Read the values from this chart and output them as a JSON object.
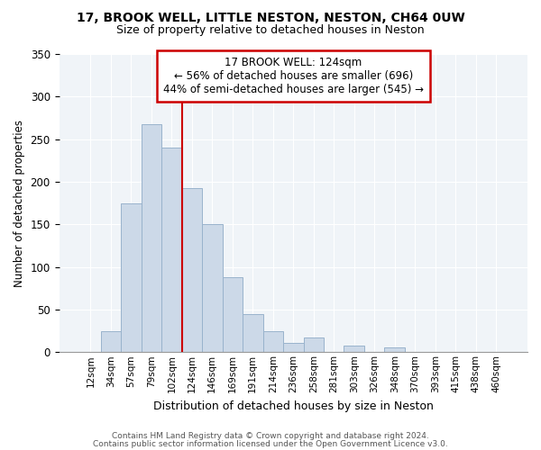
{
  "title": "17, BROOK WELL, LITTLE NESTON, NESTON, CH64 0UW",
  "subtitle": "Size of property relative to detached houses in Neston",
  "xlabel": "Distribution of detached houses by size in Neston",
  "ylabel": "Number of detached properties",
  "bar_color": "#ccd9e8",
  "bar_edge_color": "#99b3cc",
  "categories": [
    "12sqm",
    "34sqm",
    "57sqm",
    "79sqm",
    "102sqm",
    "124sqm",
    "146sqm",
    "169sqm",
    "191sqm",
    "214sqm",
    "236sqm",
    "258sqm",
    "281sqm",
    "303sqm",
    "326sqm",
    "348sqm",
    "370sqm",
    "393sqm",
    "415sqm",
    "438sqm",
    "460sqm"
  ],
  "values": [
    0,
    25,
    175,
    268,
    240,
    193,
    150,
    88,
    45,
    25,
    11,
    17,
    0,
    8,
    0,
    6,
    0,
    0,
    0,
    0,
    0
  ],
  "vline_color": "#cc0000",
  "annotation_title": "17 BROOK WELL: 124sqm",
  "annotation_line1": "← 56% of detached houses are smaller (696)",
  "annotation_line2": "44% of semi-detached houses are larger (545) →",
  "annotation_box_color": "white",
  "annotation_box_edge_color": "#cc0000",
  "ylim": [
    0,
    350
  ],
  "yticks": [
    0,
    50,
    100,
    150,
    200,
    250,
    300,
    350
  ],
  "bg_color": "#f0f4f8",
  "footer1": "Contains HM Land Registry data © Crown copyright and database right 2024.",
  "footer2": "Contains public sector information licensed under the Open Government Licence v3.0."
}
